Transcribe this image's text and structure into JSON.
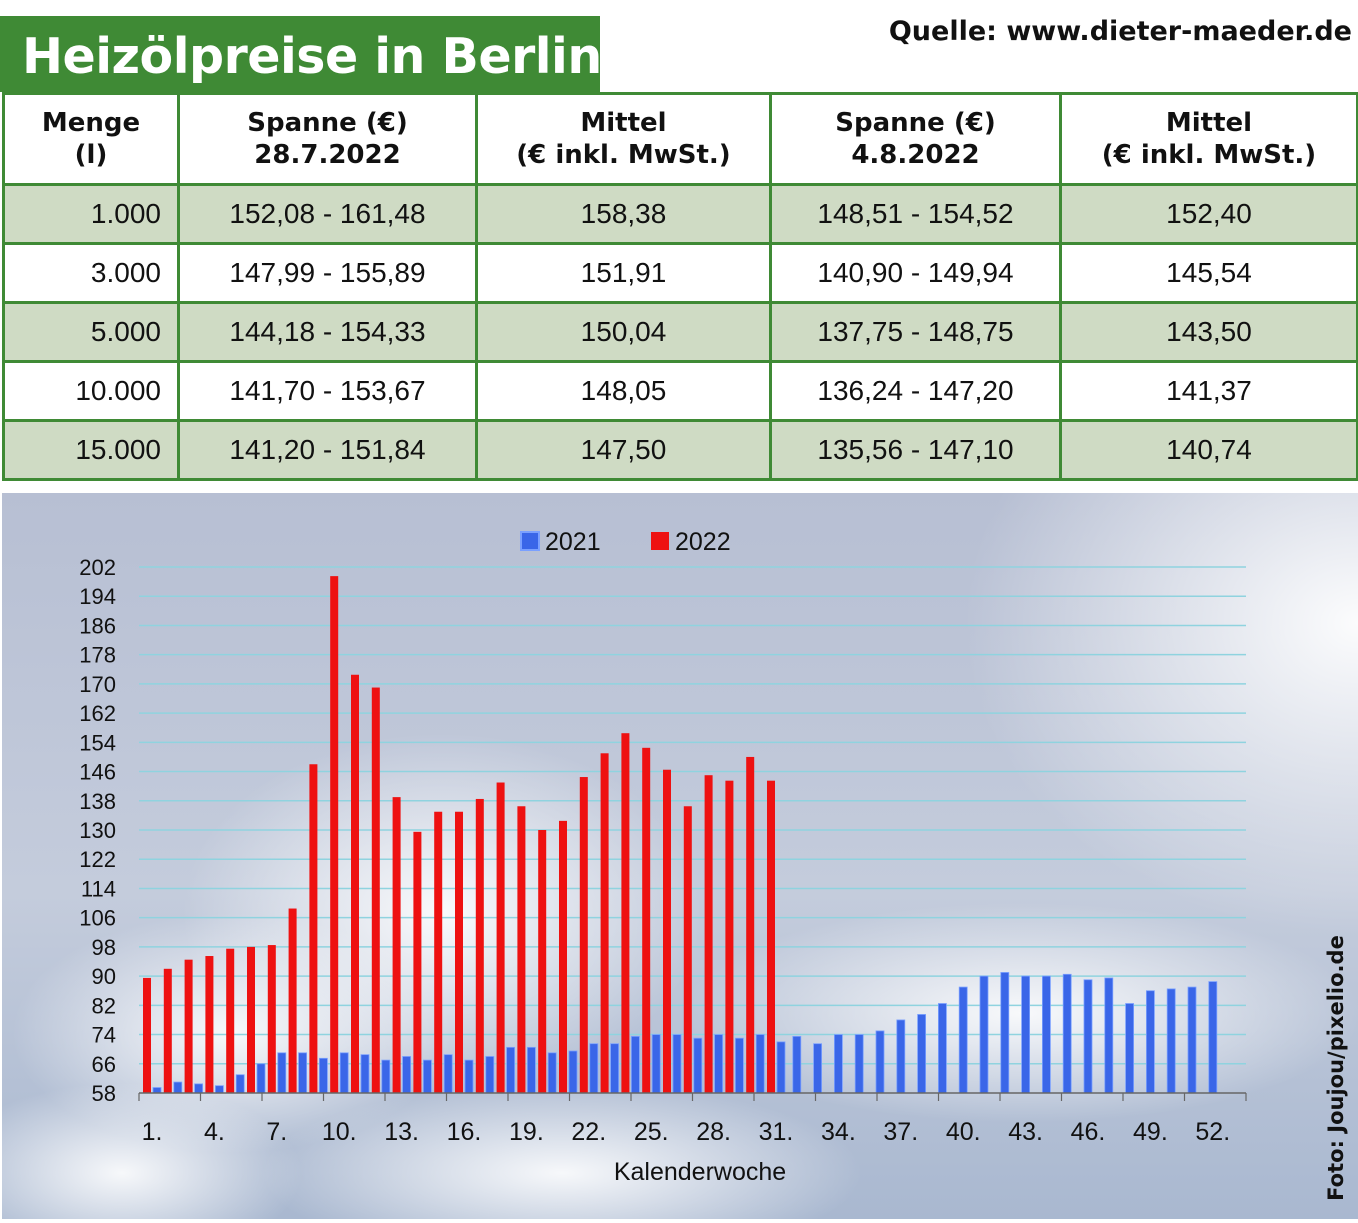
{
  "title": "Heizölpreise in Berlin",
  "source": "Quelle: www.dieter-maeder.de",
  "photo_credit": "Foto: Joujou/pixelio.de",
  "table": {
    "headers": [
      [
        "Menge",
        "(l)"
      ],
      [
        "Spanne (€)",
        "28.7.2022"
      ],
      [
        "Mittel",
        "(€ inkl. MwSt.)"
      ],
      [
        "Spanne (€)",
        "4.8.2022"
      ],
      [
        "Mittel",
        "(€ inkl. MwSt.)"
      ]
    ],
    "rows": [
      [
        "1.000",
        "152,08 - 161,48",
        "158,38",
        "148,51 - 154,52",
        "152,40"
      ],
      [
        "3.000",
        "147,99 - 155,89",
        "151,91",
        "140,90 - 149,94",
        "145,54"
      ],
      [
        "5.000",
        "144,18 - 154,33",
        "150,04",
        "137,75 - 148,75",
        "143,50"
      ],
      [
        "10.000",
        "141,70 - 153,67",
        "148,05",
        "136,24 - 147,20",
        "141,37"
      ],
      [
        "15.000",
        "141,20 - 151,84",
        "147,50",
        "135,56 - 147,10",
        "140,74"
      ]
    ]
  },
  "colors": {
    "title_bg": "#3f8a35",
    "border": "#3f8a35",
    "shade_row": "#cfdbc4",
    "series_2021": "#3a66e8",
    "series_2022": "#ee1111",
    "grid": "#8fd3df"
  },
  "chart_data": {
    "type": "bar",
    "xlabel": "Kalenderwoche",
    "ylabel": "",
    "ylim": [
      58,
      202
    ],
    "yticks": [
      58,
      66,
      74,
      82,
      90,
      98,
      106,
      114,
      122,
      130,
      138,
      146,
      154,
      162,
      170,
      178,
      186,
      194,
      202
    ],
    "xtick_labels": [
      "1.",
      "4.",
      "7.",
      "10.",
      "13.",
      "16.",
      "19.",
      "22.",
      "25.",
      "28.",
      "31.",
      "34.",
      "37.",
      "40.",
      "43.",
      "46.",
      "49.",
      "52."
    ],
    "xtick_weeks": [
      1,
      4,
      7,
      10,
      13,
      16,
      19,
      22,
      25,
      28,
      31,
      34,
      37,
      40,
      43,
      46,
      49,
      52
    ],
    "legend_position": "top-center",
    "grid": true,
    "weeks": [
      1,
      2,
      3,
      4,
      5,
      6,
      7,
      8,
      9,
      10,
      11,
      12,
      13,
      14,
      15,
      16,
      17,
      18,
      19,
      20,
      21,
      22,
      23,
      24,
      25,
      26,
      27,
      28,
      29,
      30,
      31,
      32,
      33,
      34,
      35,
      36,
      37,
      38,
      39,
      40,
      41,
      42,
      43,
      44,
      45,
      46,
      47,
      48,
      49,
      50,
      51,
      52
    ],
    "series": [
      {
        "name": "2021",
        "values": [
          59.5,
          61.0,
          60.5,
          60.0,
          63.0,
          66.0,
          69.0,
          69.0,
          67.5,
          69.0,
          68.5,
          67.0,
          68.0,
          67.0,
          68.5,
          67.0,
          68.0,
          70.5,
          70.5,
          69.0,
          69.5,
          71.5,
          71.5,
          73.5,
          74.0,
          74.0,
          73.0,
          74.0,
          73.0,
          74.0,
          72.0,
          73.5,
          71.5,
          74.0,
          74.0,
          75.0,
          78.0,
          79.5,
          82.5,
          87.0,
          90.0,
          91.0,
          90.0,
          90.0,
          90.5,
          89.0,
          89.5,
          82.5,
          86.0,
          86.5,
          87.0,
          88.5
        ]
      },
      {
        "name": "2022",
        "values": [
          89.5,
          92.0,
          94.5,
          95.5,
          97.5,
          98.0,
          98.5,
          108.5,
          148.0,
          199.5,
          172.5,
          169.0,
          139.0,
          129.5,
          135.0,
          135.0,
          138.5,
          143.0,
          136.5,
          130.0,
          132.5,
          144.5,
          151.0,
          156.5,
          152.5,
          146.5,
          136.5,
          145.0,
          143.5,
          150.0,
          143.5,
          null,
          null,
          null,
          null,
          null,
          null,
          null,
          null,
          null,
          null,
          null,
          null,
          null,
          null,
          null,
          null,
          null,
          null,
          null,
          null,
          null
        ]
      }
    ]
  }
}
